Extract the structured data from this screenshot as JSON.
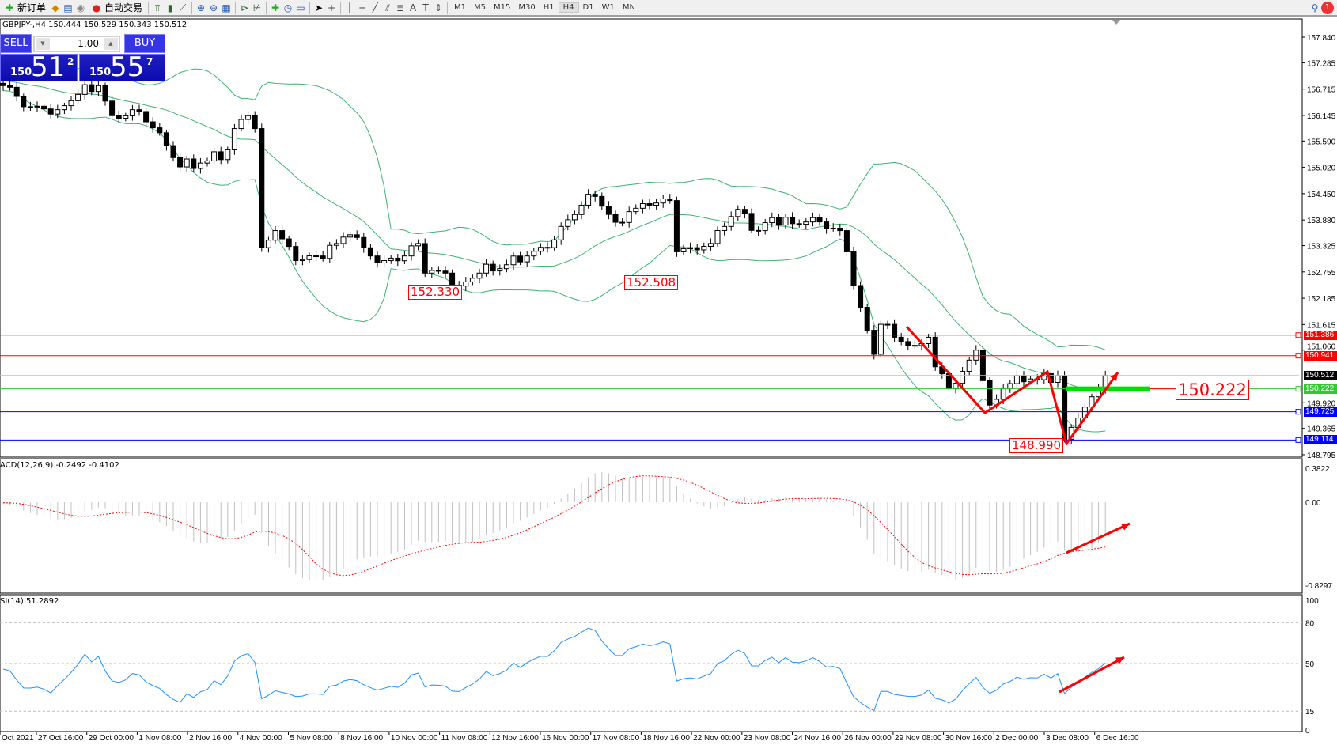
{
  "toolbar": {
    "new_order": "新订单",
    "auto_trading": "自动交易",
    "periods": [
      "M1",
      "M5",
      "M15",
      "M30",
      "H1",
      "H4",
      "D1",
      "W1",
      "MN"
    ],
    "active_period": "H4",
    "notification_count": "1"
  },
  "chart": {
    "title": "GBPJPY-,H4  150.444 150.529 150.343 150.512",
    "price_axis": [
      "157.840",
      "157.285",
      "156.715",
      "156.145",
      "155.590",
      "155.020",
      "154.450",
      "153.880",
      "153.325",
      "152.755",
      "152.185",
      "151.615",
      "151.060",
      "149.920",
      "149.365",
      "148.795"
    ],
    "price_path": [
      [
        0,
        156.79
      ],
      [
        4,
        156.33
      ],
      [
        8,
        156.27
      ],
      [
        11,
        156.6
      ],
      [
        14,
        156.79
      ],
      [
        16,
        156.14
      ],
      [
        20,
        156.23
      ],
      [
        23,
        155.77
      ],
      [
        26,
        155.03
      ],
      [
        30,
        155.16
      ],
      [
        33,
        155.4
      ],
      [
        34,
        155.86
      ],
      [
        36,
        156.14
      ],
      [
        37,
        155.86
      ],
      [
        38,
        153.28
      ],
      [
        40,
        153.65
      ],
      [
        43,
        153.0
      ],
      [
        46,
        153.1
      ],
      [
        49,
        153.37
      ],
      [
        51,
        153.56
      ],
      [
        54,
        153.1
      ],
      [
        56,
        153.0
      ],
      [
        59,
        153.1
      ],
      [
        61,
        153.37
      ],
      [
        62,
        152.73
      ],
      [
        65,
        152.73
      ],
      [
        67,
        152.45
      ],
      [
        70,
        152.73
      ],
      [
        74,
        152.91
      ],
      [
        77,
        153.1
      ],
      [
        80,
        153.28
      ],
      [
        82,
        153.74
      ],
      [
        85,
        154.2
      ],
      [
        87,
        154.39
      ],
      [
        90,
        153.83
      ],
      [
        92,
        154.06
      ],
      [
        95,
        154.2
      ],
      [
        98,
        154.3
      ],
      [
        99,
        153.19
      ],
      [
        101,
        153.28
      ],
      [
        104,
        153.37
      ],
      [
        106,
        153.74
      ],
      [
        108,
        154.11
      ],
      [
        111,
        153.65
      ],
      [
        113,
        153.93
      ],
      [
        116,
        153.8
      ],
      [
        119,
        153.93
      ],
      [
        121,
        153.69
      ],
      [
        123,
        153.65
      ],
      [
        124,
        153.19
      ],
      [
        126,
        151.99
      ],
      [
        128,
        150.97
      ],
      [
        129,
        151.62
      ],
      [
        131,
        151.34
      ],
      [
        134,
        151.16
      ],
      [
        136,
        151.34
      ],
      [
        137,
        150.7
      ],
      [
        139,
        150.23
      ],
      [
        141,
        150.6
      ],
      [
        143,
        151.06
      ],
      [
        145,
        149.87
      ],
      [
        147,
        150.23
      ],
      [
        149,
        150.51
      ],
      [
        152,
        150.42
      ],
      [
        155,
        150.51
      ],
      [
        156,
        149.13
      ],
      [
        158,
        149.59
      ],
      [
        160,
        150.05
      ],
      [
        162,
        150.512
      ]
    ],
    "hlines": [
      {
        "price": "151.386",
        "color": "#ff0000"
      },
      {
        "price": "150.941",
        "color": "#ff0000"
      },
      {
        "price": "150.512",
        "color": "#c0c0c0",
        "tag": "#000000"
      },
      {
        "price": "150.222",
        "color": "#32c832"
      },
      {
        "price": "149.725",
        "color": "#0000ff"
      },
      {
        "price": "149.114",
        "color": "#0000ff"
      }
    ],
    "annotations": [
      "152.330",
      "152.508",
      "148.990",
      "150.222"
    ]
  },
  "trade_panel": {
    "sell_label": "SELL",
    "buy_label": "BUY",
    "lot": "1.00",
    "sell_prefix": "150",
    "sell_big": "51",
    "sell_pip": "2",
    "buy_prefix": "150",
    "buy_big": "55",
    "buy_pip": "7"
  },
  "macd": {
    "label": "ACD(12,26,9) -0.2492 -0.4102",
    "axis": [
      "0.3822",
      "0.00",
      "-0.8297"
    ]
  },
  "rsi": {
    "label": "SI(14) 51.2892",
    "axis": [
      "100",
      "80",
      "50",
      "15",
      "0"
    ]
  },
  "time_axis": [
    "Oct 2021",
    "27 Oct 16:00",
    "29 Oct 00:00",
    "1 Nov 08:00",
    "2 Nov 16:00",
    "4 Nov 00:00",
    "5 Nov 08:00",
    "8 Nov 16:00",
    "10 Nov 00:00",
    "11 Nov 08:00",
    "12 Nov 16:00",
    "16 Nov 00:00",
    "17 Nov 08:00",
    "18 Nov 16:00",
    "22 Nov 00:00",
    "23 Nov 08:00",
    "24 Nov 16:00",
    "26 Nov 00:00",
    "29 Nov 08:00",
    "30 Nov 16:00",
    "2 Dec 00:00",
    "3 Dec 08:00",
    "6 Dec 16:00"
  ]
}
